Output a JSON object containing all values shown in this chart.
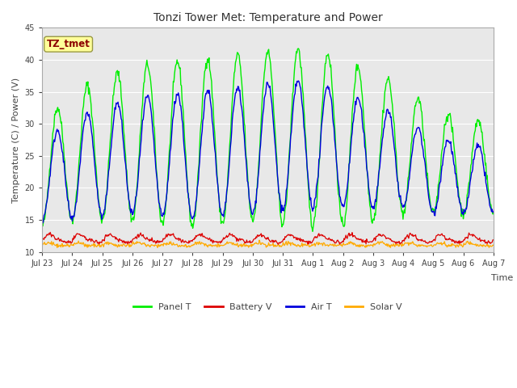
{
  "title": "Tonzi Tower Met: Temperature and Power",
  "xlabel": "Time",
  "ylabel": "Temperature (C) / Power (V)",
  "ylim": [
    10,
    45
  ],
  "yticks": [
    10,
    15,
    20,
    25,
    30,
    35,
    40,
    45
  ],
  "fig_bg_color": "#ffffff",
  "plot_bg_color": "#e8e8e8",
  "annotation_text": "TZ_tmet",
  "annotation_color": "#8b0000",
  "annotation_bg": "#ffff99",
  "annotation_border": "#999944",
  "legend_labels": [
    "Panel T",
    "Battery V",
    "Air T",
    "Solar V"
  ],
  "legend_colors": [
    "#00ee00",
    "#dd0000",
    "#0000dd",
    "#ffaa00"
  ],
  "panel_t_color": "#00ee00",
  "battery_v_color": "#dd0000",
  "air_t_color": "#0000dd",
  "solar_v_color": "#ffaa00",
  "tick_labels": [
    "Jul 23",
    "Jul 24",
    "Jul 25",
    "Jul 26",
    "Jul 27",
    "Jul 28",
    "Jul 29",
    "Jul 30",
    "Jul 31",
    "Aug 1",
    "Aug 2",
    "Aug 3",
    "Aug 4",
    "Aug 5",
    "Aug 6",
    "Aug 7"
  ],
  "grid_color": "#ffffff",
  "title_fontsize": 10,
  "axis_label_fontsize": 8,
  "tick_fontsize": 7,
  "legend_fontsize": 8
}
